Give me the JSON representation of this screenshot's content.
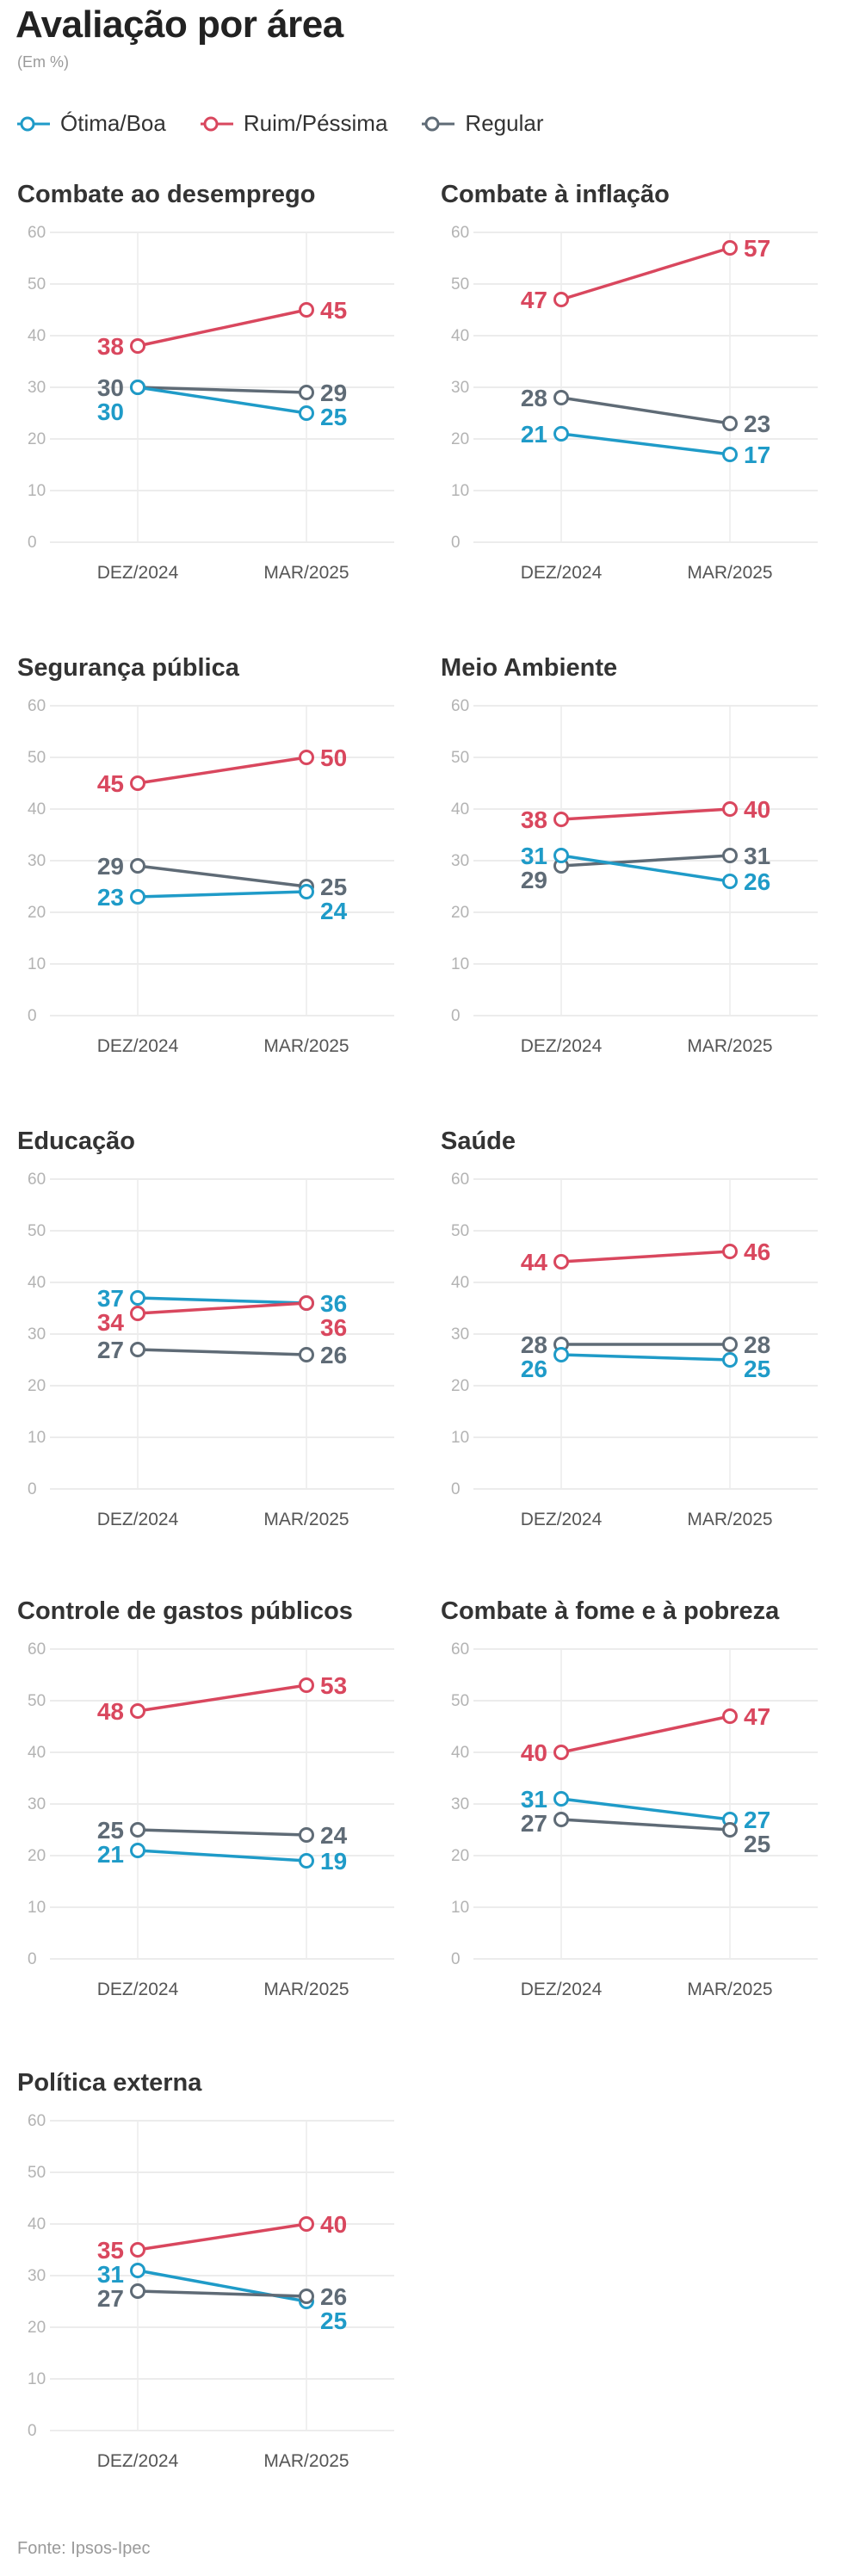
{
  "header": {
    "title": "Avaliação por área",
    "subtitle": "(Em %)",
    "source": "Fonte: Ipsos-Ipec"
  },
  "legend": [
    {
      "label": "Ótima/Boa",
      "color": "#1f9bc8"
    },
    {
      "label": "Ruim/Péssima",
      "color": "#d9475e"
    },
    {
      "label": "Regular",
      "color": "#5f6b76"
    }
  ],
  "chart_data": [
    {
      "type": "line",
      "title": "Combate ao desemprego",
      "categories": [
        "DEZ/2024",
        "MAR/2025"
      ],
      "ylim": [
        0,
        60
      ],
      "yticks": [
        0,
        10,
        20,
        30,
        40,
        50,
        60
      ],
      "series": [
        {
          "name": "Ruim/Péssima",
          "values": [
            38,
            45
          ]
        },
        {
          "name": "Regular",
          "values": [
            30,
            29
          ]
        },
        {
          "name": "Ótima/Boa",
          "values": [
            30,
            25
          ]
        }
      ]
    },
    {
      "type": "line",
      "title": "Combate à inflação",
      "categories": [
        "DEZ/2024",
        "MAR/2025"
      ],
      "ylim": [
        0,
        60
      ],
      "yticks": [
        0,
        10,
        20,
        30,
        40,
        50,
        60
      ],
      "series": [
        {
          "name": "Ruim/Péssima",
          "values": [
            47,
            57
          ]
        },
        {
          "name": "Regular",
          "values": [
            28,
            23
          ]
        },
        {
          "name": "Ótima/Boa",
          "values": [
            21,
            17
          ]
        }
      ]
    },
    {
      "type": "line",
      "title": "Segurança pública",
      "categories": [
        "DEZ/2024",
        "MAR/2025"
      ],
      "ylim": [
        0,
        60
      ],
      "yticks": [
        0,
        10,
        20,
        30,
        40,
        50,
        60
      ],
      "series": [
        {
          "name": "Ruim/Péssima",
          "values": [
            45,
            50
          ]
        },
        {
          "name": "Regular",
          "values": [
            29,
            25
          ]
        },
        {
          "name": "Ótima/Boa",
          "values": [
            23,
            24
          ]
        }
      ]
    },
    {
      "type": "line",
      "title": "Meio Ambiente",
      "categories": [
        "DEZ/2024",
        "MAR/2025"
      ],
      "ylim": [
        0,
        60
      ],
      "yticks": [
        0,
        10,
        20,
        30,
        40,
        50,
        60
      ],
      "series": [
        {
          "name": "Ruim/Péssima",
          "values": [
            38,
            40
          ]
        },
        {
          "name": "Regular",
          "values": [
            29,
            31
          ]
        },
        {
          "name": "Ótima/Boa",
          "values": [
            31,
            26
          ]
        }
      ]
    },
    {
      "type": "line",
      "title": "Educação",
      "categories": [
        "DEZ/2024",
        "MAR/2025"
      ],
      "ylim": [
        0,
        60
      ],
      "yticks": [
        0,
        10,
        20,
        30,
        40,
        50,
        60
      ],
      "series": [
        {
          "name": "Ótima/Boa",
          "values": [
            37,
            36
          ]
        },
        {
          "name": "Ruim/Péssima",
          "values": [
            34,
            36
          ]
        },
        {
          "name": "Regular",
          "values": [
            27,
            26
          ]
        }
      ]
    },
    {
      "type": "line",
      "title": "Saúde",
      "categories": [
        "DEZ/2024",
        "MAR/2025"
      ],
      "ylim": [
        0,
        60
      ],
      "yticks": [
        0,
        10,
        20,
        30,
        40,
        50,
        60
      ],
      "series": [
        {
          "name": "Ruim/Péssima",
          "values": [
            44,
            46
          ]
        },
        {
          "name": "Regular",
          "values": [
            28,
            28
          ]
        },
        {
          "name": "Ótima/Boa",
          "values": [
            26,
            25
          ]
        }
      ]
    },
    {
      "type": "line",
      "title": "Controle de gastos públicos",
      "categories": [
        "DEZ/2024",
        "MAR/2025"
      ],
      "ylim": [
        0,
        60
      ],
      "yticks": [
        0,
        10,
        20,
        30,
        40,
        50,
        60
      ],
      "series": [
        {
          "name": "Ruim/Péssima",
          "values": [
            48,
            53
          ]
        },
        {
          "name": "Regular",
          "values": [
            25,
            24
          ]
        },
        {
          "name": "Ótima/Boa",
          "values": [
            21,
            19
          ]
        }
      ]
    },
    {
      "type": "line",
      "title": "Combate à fome e à pobreza",
      "categories": [
        "DEZ/2024",
        "MAR/2025"
      ],
      "ylim": [
        0,
        60
      ],
      "yticks": [
        0,
        10,
        20,
        30,
        40,
        50,
        60
      ],
      "series": [
        {
          "name": "Ruim/Péssima",
          "values": [
            40,
            47
          ]
        },
        {
          "name": "Ótima/Boa",
          "values": [
            31,
            27
          ]
        },
        {
          "name": "Regular",
          "values": [
            27,
            25
          ]
        }
      ]
    },
    {
      "type": "line",
      "title": "Política externa",
      "categories": [
        "DEZ/2024",
        "MAR/2025"
      ],
      "ylim": [
        0,
        60
      ],
      "yticks": [
        0,
        10,
        20,
        30,
        40,
        50,
        60
      ],
      "series": [
        {
          "name": "Ruim/Péssima",
          "values": [
            35,
            40
          ]
        },
        {
          "name": "Ótima/Boa",
          "values": [
            31,
            25
          ]
        },
        {
          "name": "Regular",
          "values": [
            27,
            26
          ]
        }
      ]
    }
  ]
}
